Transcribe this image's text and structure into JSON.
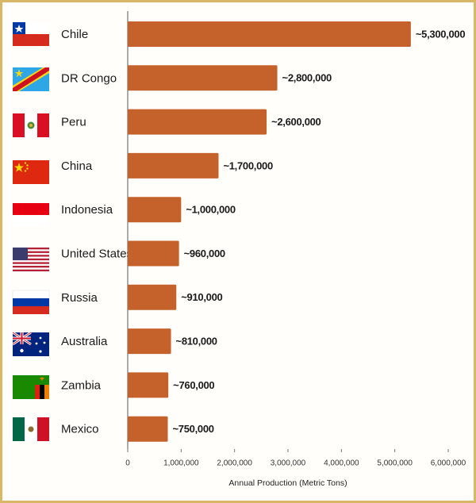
{
  "chart_data": {
    "type": "bar",
    "orientation": "horizontal",
    "x_label": "Annual Production (Metric Tons)",
    "categories": [
      "Chile",
      "DR Congo",
      "Peru",
      "China",
      "Indonesia",
      "United States",
      "Russia",
      "Australia",
      "Zambia",
      "Mexico"
    ],
    "values": [
      5300000,
      2800000,
      2600000,
      1700000,
      1000000,
      960000,
      910000,
      810000,
      760000,
      750000
    ],
    "value_labels": [
      "~5,300,000",
      "~2,800,000",
      "~2,600,000",
      "~1,700,000",
      "~1,000,000",
      "~960,000",
      "~910,000",
      "~810,000",
      "~760,000",
      "~750,000"
    ],
    "color": "#c5612b",
    "xlim": [
      0,
      6000000
    ],
    "xticks": [
      0,
      {
        "value": 1000000,
        "label": "1,000,000"
      },
      {
        "value": 2000000,
        "label": "2,000,000"
      },
      {
        "value": 3000000,
        "label": "3,000,000"
      },
      {
        "value": 4000000,
        "label": "4,000,000"
      },
      {
        "value": 5000000,
        "label": "5,000,000"
      },
      {
        "value": 6000000,
        "label": "6,000,000"
      }
    ],
    "grid": false
  }
}
